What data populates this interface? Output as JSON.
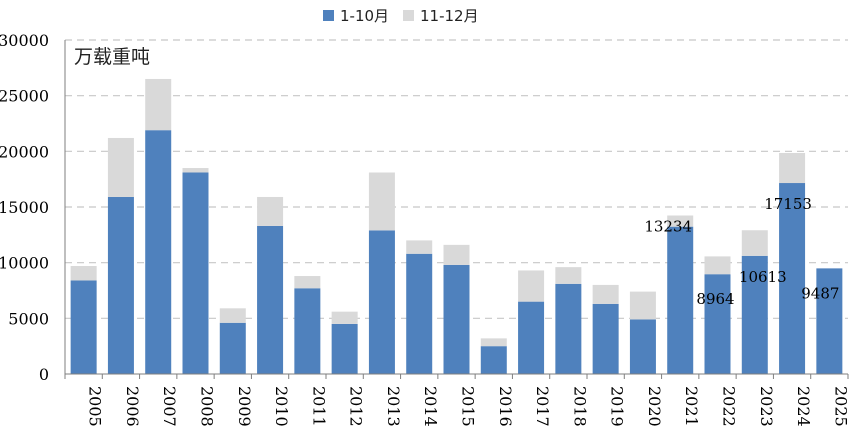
{
  "chart_data": {
    "type": "bar",
    "stacked": true,
    "unit_label": "万载重吨",
    "categories": [
      "2005",
      "2006",
      "2007",
      "2008",
      "2009",
      "2010",
      "2011",
      "2012",
      "2013",
      "2014",
      "2015",
      "2016",
      "2017",
      "2018",
      "2019",
      "2020",
      "2021",
      "2022",
      "2023",
      "2024",
      "2025"
    ],
    "series": [
      {
        "name": "1-10月",
        "color": "#4f81bd",
        "values": [
          8400,
          15900,
          21900,
          18100,
          4600,
          13300,
          7700,
          4500,
          12900,
          10800,
          9800,
          2500,
          6500,
          8100,
          6300,
          4900,
          13234,
          8964,
          10613,
          17153,
          9487
        ]
      },
      {
        "name": "11-12月",
        "color": "#d9d9d9",
        "values": [
          1300,
          5300,
          4600,
          400,
          1300,
          2600,
          1100,
          1100,
          5200,
          1200,
          1800,
          700,
          2800,
          1500,
          1700,
          2500,
          1000,
          1600,
          2300,
          2700,
          0
        ]
      }
    ],
    "data_labels": [
      {
        "category": "2021",
        "text": "13234"
      },
      {
        "category": "2022",
        "text": "8964"
      },
      {
        "category": "2023",
        "text": "10613"
      },
      {
        "category": "2024",
        "text": "17153"
      },
      {
        "category": "2025",
        "text": "9487"
      }
    ],
    "ylim": [
      0,
      30000
    ],
    "yticks": [
      "0",
      "5000",
      "10000",
      "15000",
      "20000",
      "25000",
      "30000"
    ],
    "grid": true,
    "legend_position": "top-center"
  }
}
